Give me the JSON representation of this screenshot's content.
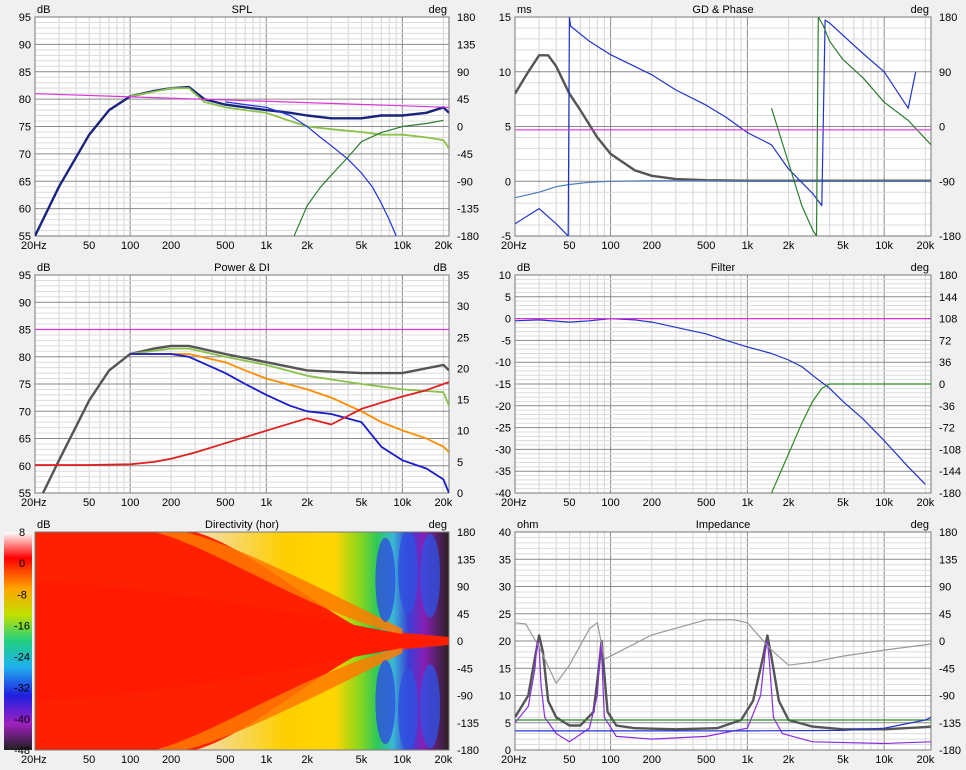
{
  "chart_data": [
    {
      "type": "line",
      "title": "SPL",
      "y_unit": "dB",
      "y2_unit": "deg",
      "xscale": "log",
      "xlim": [
        20,
        22000
      ],
      "ylim": [
        55,
        95
      ],
      "y2lim": [
        -180,
        180
      ],
      "x_ticks": [
        "20Hz",
        "50",
        "100",
        "200",
        "500",
        "1k",
        "2k",
        "5k",
        "10k",
        "20k"
      ],
      "y_ticks": [
        "95",
        "90",
        "85",
        "80",
        "75",
        "70",
        "65",
        "60",
        "55"
      ],
      "y2_ticks": [
        "180",
        "135",
        "90",
        "45",
        "0",
        "-45",
        "-90",
        "-135",
        "-180"
      ],
      "series": [
        {
          "color": "#1a237e",
          "axis": "y",
          "x": [
            20,
            30,
            50,
            70,
            100,
            150,
            200,
            270,
            350,
            500,
            700,
            1000,
            1500,
            2000,
            3000,
            5000,
            7000,
            10000,
            15000,
            20000,
            22000
          ],
          "values": [
            55,
            64,
            73.5,
            78,
            80.5,
            81.5,
            82,
            82.2,
            80,
            79,
            78.5,
            78,
            77.5,
            77,
            76.5,
            76.5,
            77,
            77,
            77.5,
            78.5,
            77.5
          ]
        },
        {
          "color": "#8bc34a",
          "axis": "y",
          "x": [
            100,
            200,
            270,
            350,
            500,
            700,
            1000,
            1500,
            2000,
            3000,
            5000,
            7000,
            10000,
            15000,
            20000,
            22000
          ],
          "values": [
            80.5,
            82,
            82,
            79.5,
            78.5,
            78,
            77.5,
            76,
            75,
            74.5,
            74,
            73.5,
            73.5,
            73,
            72.5,
            71
          ]
        },
        {
          "color": "#2233dd",
          "axis": "y",
          "x": [
            500,
            700,
            1000,
            1500,
            2000,
            2500,
            3000,
            4000,
            5000,
            6000,
            7000,
            8000,
            9000
          ],
          "values": [
            79.5,
            79,
            78.5,
            77,
            75,
            73,
            71.5,
            69,
            66.5,
            64,
            61,
            58,
            55
          ]
        },
        {
          "color": "#2e7d32",
          "axis": "y2",
          "x": [
            1600,
            2000,
            2500,
            3000,
            4000,
            5000,
            7000,
            10000,
            15000,
            20000
          ],
          "values": [
            -180,
            -130,
            -100,
            -80,
            -50,
            -25,
            -10,
            0,
            5,
            10
          ]
        },
        {
          "color": "#dd33dd",
          "axis": "y",
          "x": [
            20,
            22000
          ],
          "values": [
            81,
            78.5
          ]
        }
      ]
    },
    {
      "type": "line",
      "title": "GD & Phase",
      "y_unit": "ms",
      "y2_unit": "deg",
      "xscale": "log",
      "xlim": [
        20,
        22000
      ],
      "ylim": [
        -5,
        15
      ],
      "y2lim": [
        -180,
        180
      ],
      "x_ticks": [
        "20Hz",
        "50",
        "100",
        "200",
        "500",
        "1k",
        "2k",
        "5k",
        "10k",
        "20k"
      ],
      "y_ticks": [
        "15",
        "10",
        "5",
        "0",
        "-5"
      ],
      "y2_ticks": [
        "180",
        "90",
        "0",
        "-90",
        "-180"
      ],
      "series": [
        {
          "color": "#555555",
          "axis": "y",
          "x": [
            20,
            25,
            30,
            35,
            40,
            50,
            60,
            80,
            100,
            150,
            200,
            300,
            500,
            1000,
            2000,
            5000,
            10000,
            22000
          ],
          "values": [
            8,
            10,
            11.5,
            11.5,
            10.5,
            8,
            6.5,
            4,
            2.5,
            1,
            0.5,
            0.2,
            0.1,
            0.05,
            0.05,
            0.05,
            0.05,
            0.05
          ]
        },
        {
          "color": "#4a7bc4",
          "axis": "y",
          "x": [
            20,
            30,
            40,
            50,
            70,
            100,
            200,
            500,
            1000,
            2000,
            5000,
            10000,
            22000
          ],
          "values": [
            -1.5,
            -1,
            -0.5,
            -0.3,
            -0.1,
            0,
            0.05,
            0.05,
            0.05,
            0.05,
            0.05,
            0.05,
            0.05
          ]
        },
        {
          "color": "#2233cc",
          "axis": "y2",
          "x": [
            20,
            30,
            40,
            49,
            50,
            51,
            70,
            100,
            200,
            300,
            500,
            700,
            1000,
            1500,
            2000,
            3000,
            3500,
            3700,
            4000,
            5000,
            7000,
            10000,
            15000,
            17000
          ],
          "values": [
            -160,
            -135,
            -160,
            -180,
            180,
            165,
            140,
            118,
            85,
            60,
            35,
            15,
            -10,
            -30,
            -70,
            -110,
            -130,
            175,
            170,
            150,
            120,
            90,
            30,
            90
          ]
        },
        {
          "color": "#2e7d32",
          "axis": "y2",
          "x": [
            1500,
            2000,
            2500,
            3000,
            3200,
            3300,
            3400,
            3600,
            4000,
            5000,
            7000,
            10000,
            15000,
            22000
          ],
          "values": [
            30,
            -60,
            -130,
            -170,
            -180,
            180,
            175,
            165,
            140,
            110,
            80,
            40,
            10,
            -30
          ]
        },
        {
          "color": "#dd33dd",
          "axis": "y",
          "x": [
            20,
            22000
          ],
          "values": [
            4.7,
            4.7
          ]
        }
      ]
    },
    {
      "type": "line",
      "title": "Power & DI",
      "y_unit": "dB",
      "y2_unit": "dB",
      "xscale": "log",
      "xlim": [
        20,
        22000
      ],
      "ylim": [
        55,
        95
      ],
      "y2lim": [
        0,
        35
      ],
      "x_ticks": [
        "20Hz",
        "50",
        "100",
        "200",
        "500",
        "1k",
        "2k",
        "5k",
        "10k",
        "20k"
      ],
      "y_ticks": [
        "95",
        "90",
        "85",
        "80",
        "75",
        "70",
        "65",
        "60",
        "55"
      ],
      "y2_ticks": [
        "35",
        "30",
        "25",
        "20",
        "15",
        "10",
        "5",
        "0"
      ],
      "series": [
        {
          "color": "#555555",
          "axis": "y",
          "x": [
            20,
            30,
            50,
            70,
            100,
            150,
            200,
            270,
            500,
            1000,
            2000,
            5000,
            10000,
            20000,
            22000
          ],
          "values": [
            52,
            61,
            72,
            77.5,
            80.5,
            81.5,
            82,
            82,
            80.5,
            79,
            77.5,
            77,
            77,
            78.5,
            77.5
          ]
        },
        {
          "color": "#8bc34a",
          "axis": "y",
          "x": [
            100,
            200,
            270,
            500,
            1000,
            2000,
            5000,
            10000,
            20000,
            22000
          ],
          "values": [
            80.5,
            81.5,
            81.5,
            80,
            78.5,
            76.5,
            75,
            74,
            73.5,
            71
          ]
        },
        {
          "color": "#ff8c00",
          "axis": "y",
          "x": [
            100,
            200,
            270,
            500,
            700,
            1000,
            2000,
            3000,
            5000,
            7000,
            10000,
            15000,
            20000,
            22000
          ],
          "values": [
            80.5,
            80.5,
            80.5,
            79,
            77.5,
            76,
            74,
            72.5,
            70,
            68,
            66.5,
            65,
            63.5,
            62.5
          ]
        },
        {
          "color": "#1a1acc",
          "axis": "y",
          "x": [
            100,
            150,
            200,
            270,
            500,
            700,
            1000,
            1500,
            2000,
            3000,
            5000,
            7000,
            10000,
            15000,
            20000,
            22000
          ],
          "values": [
            80.5,
            80.5,
            80.5,
            80,
            77,
            75,
            73,
            71,
            70,
            69.5,
            68,
            63.5,
            61,
            59.5,
            57.5,
            55
          ]
        },
        {
          "color": "#e02020",
          "axis": "y2",
          "x": [
            20,
            50,
            100,
            150,
            200,
            300,
            500,
            1000,
            2000,
            3000,
            5000,
            7000,
            10000,
            15000,
            20000,
            22000
          ],
          "values": [
            4.5,
            4.5,
            4.6,
            5,
            5.5,
            6.5,
            8,
            10,
            12,
            11,
            13.5,
            14.5,
            15.5,
            16.5,
            17.5,
            17.8
          ]
        },
        {
          "color": "#dd33dd",
          "axis": "y",
          "x": [
            20,
            22000
          ],
          "values": [
            85,
            85
          ]
        }
      ]
    },
    {
      "type": "line",
      "title": "Filter",
      "y_unit": "dB",
      "y2_unit": "deg",
      "xscale": "log",
      "xlim": [
        20,
        22000
      ],
      "ylim": [
        -40,
        10
      ],
      "y2lim": [
        -180,
        180
      ],
      "x_ticks": [
        "20Hz",
        "50",
        "100",
        "200",
        "500",
        "1k",
        "2k",
        "5k",
        "10k",
        "20k"
      ],
      "y_ticks": [
        "10",
        "5",
        "0",
        "-5",
        "-10",
        "-15",
        "-20",
        "-25",
        "-30",
        "-35",
        "-40"
      ],
      "y2_ticks": [
        "180",
        "144",
        "108",
        "72",
        "36",
        "0",
        "-36",
        "-72",
        "-108",
        "-144",
        "-180"
      ],
      "series": [
        {
          "color": "#2233cc",
          "axis": "y",
          "x": [
            20,
            30,
            50,
            70,
            100,
            150,
            200,
            300,
            500,
            700,
            1000,
            1500,
            2000,
            2500,
            3000,
            4000,
            5000,
            7000,
            10000,
            15000,
            20000
          ],
          "values": [
            -0.5,
            -0.3,
            -0.8,
            -0.5,
            0,
            -0.3,
            -0.8,
            -2,
            -3.5,
            -5,
            -6.5,
            -8,
            -9.5,
            -11,
            -13,
            -16,
            -19,
            -23,
            -28,
            -34,
            -38
          ]
        },
        {
          "color": "#2e8b22",
          "axis": "y",
          "x": [
            1500,
            2000,
            2500,
            3000,
            3500,
            4000,
            5000,
            7000,
            10000,
            20000,
            22000
          ],
          "values": [
            -40,
            -31,
            -24,
            -19,
            -16,
            -15,
            -15,
            -15,
            -15,
            -15,
            -15
          ]
        },
        {
          "color": "#dd33dd",
          "axis": "y",
          "x": [
            20,
            22000
          ],
          "values": [
            0,
            0
          ]
        }
      ]
    },
    {
      "type": "heatmap",
      "title": "Directivity (hor)",
      "y_unit": "dB",
      "y2_unit": "deg",
      "xscale": "log",
      "xlim": [
        20,
        22000
      ],
      "y2lim": [
        -180,
        180
      ],
      "colorbar_range": [
        -48,
        8
      ],
      "x_ticks": [
        "20Hz",
        "50",
        "100",
        "200",
        "500",
        "1k",
        "2k",
        "5k",
        "10k",
        "20k"
      ],
      "colorbar_ticks": [
        "8",
        "0",
        "-8",
        "-16",
        "-24",
        "-32",
        "-40",
        "-48"
      ],
      "y2_ticks": [
        "180",
        "135",
        "90",
        "45",
        "0",
        "-45",
        "-90",
        "-135",
        "-180"
      ]
    },
    {
      "type": "line",
      "title": "Impedance",
      "y_unit": "ohm",
      "y2_unit": "deg",
      "xscale": "log",
      "xlim": [
        20,
        22000
      ],
      "ylim": [
        0,
        40
      ],
      "y2lim": [
        -180,
        180
      ],
      "x_ticks": [
        "20Hz",
        "50",
        "100",
        "200",
        "500",
        "1k",
        "2k",
        "5k",
        "10k",
        "20k"
      ],
      "y_ticks": [
        "40",
        "35",
        "30",
        "25",
        "20",
        "15",
        "10",
        "5",
        "0"
      ],
      "y2_ticks": [
        "180",
        "135",
        "90",
        "45",
        "0",
        "-45",
        "-90",
        "-135",
        "-180"
      ],
      "series": [
        {
          "color": "#555555",
          "axis": "y",
          "x": [
            20,
            25,
            28,
            30,
            32,
            35,
            40,
            50,
            60,
            75,
            82,
            86,
            90,
            95,
            110,
            150,
            300,
            600,
            900,
            1100,
            1300,
            1400,
            1500,
            1700,
            2000,
            3000,
            5000,
            10000,
            20000,
            22000
          ],
          "values": [
            6,
            10,
            17,
            21,
            18,
            9,
            6,
            4.5,
            4.5,
            7,
            15,
            20,
            14,
            7,
            4.5,
            4,
            3.8,
            4,
            5.5,
            9,
            17,
            21,
            17,
            9,
            5.5,
            4.3,
            3.8,
            3.8,
            4.2,
            4.3
          ]
        },
        {
          "color": "#8a2be2",
          "axis": "y",
          "x": [
            20,
            25,
            28,
            29,
            30,
            31,
            33,
            40,
            50,
            70,
            80,
            84,
            85,
            87,
            90,
            110,
            200,
            500,
            1000,
            1250,
            1350,
            1400,
            1450,
            1550,
            1800,
            3000,
            10000,
            22000
          ],
          "values": [
            5,
            8,
            15,
            20,
            19,
            12,
            6,
            3,
            1.5,
            4,
            10,
            18,
            20,
            15,
            6,
            2.5,
            2,
            2.5,
            4,
            10,
            18,
            20,
            16,
            6,
            3,
            1.5,
            1.2,
            1.5
          ]
        },
        {
          "color": "#999999",
          "axis": "y2",
          "x": [
            20,
            24,
            30,
            40,
            50,
            70,
            80,
            85,
            90,
            100,
            200,
            500,
            800,
            1000,
            1500,
            2000,
            3000,
            5000,
            10000,
            22000
          ],
          "values": [
            30,
            28,
            -10,
            -70,
            -40,
            20,
            30,
            0,
            -30,
            -25,
            10,
            35,
            35,
            30,
            -15,
            -40,
            -35,
            -25,
            -15,
            -5
          ]
        },
        {
          "color": "#2e8b22",
          "axis": "y",
          "x": [
            20,
            22000
          ],
          "values": [
            5.5,
            5.5
          ]
        },
        {
          "color": "#2233cc",
          "axis": "y",
          "x": [
            20,
            1000,
            5000,
            10000,
            20000,
            22000
          ],
          "values": [
            3.5,
            3.5,
            3.6,
            4,
            5.5,
            6
          ]
        }
      ]
    }
  ]
}
